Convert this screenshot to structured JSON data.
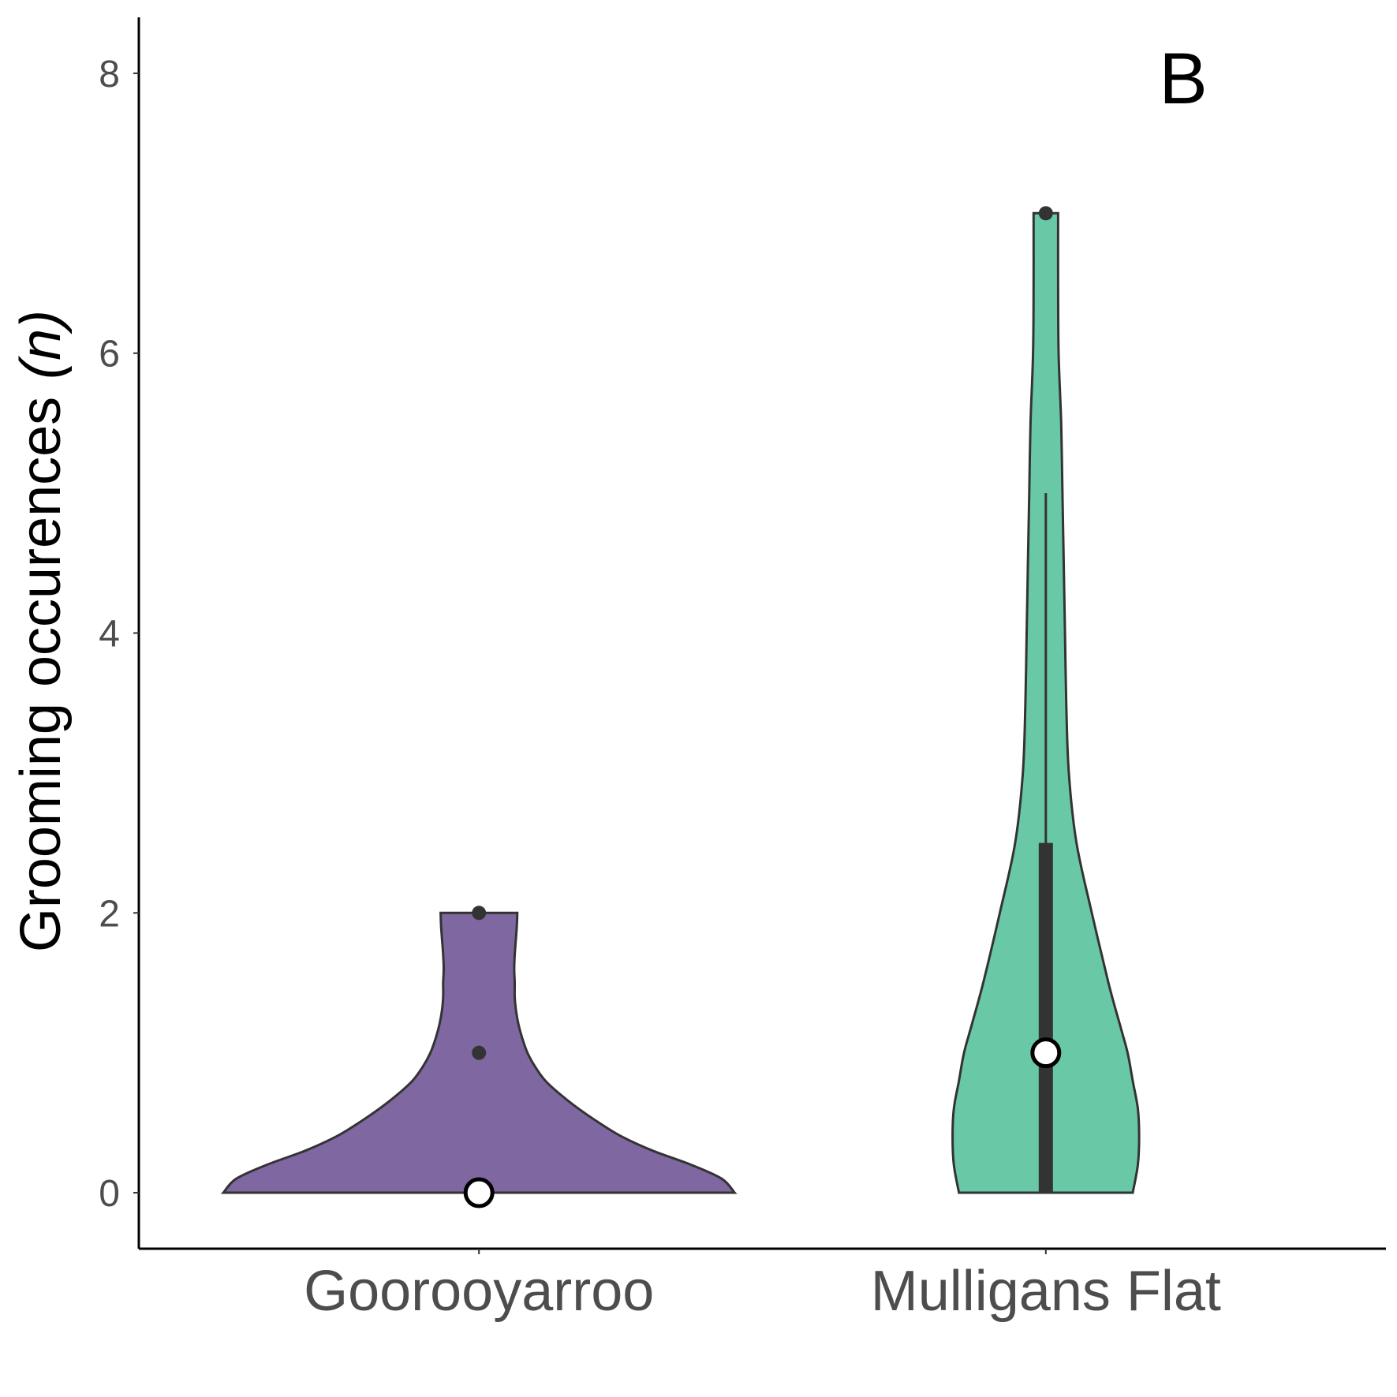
{
  "chart_data": {
    "type": "violin",
    "panel_label": "B",
    "ylabel": "Grooming occurences",
    "ylabel_italic_part": "(n)",
    "ylim": [
      -0.4,
      8.4
    ],
    "yticks": [
      "0",
      "2",
      "4",
      "6",
      "8"
    ],
    "ytick_values": [
      0,
      2,
      4,
      6,
      8
    ],
    "categories": [
      "Goorooyarroo",
      "Mulligans Flat"
    ],
    "groups": [
      {
        "category": "Goorooyarroo",
        "color": "#7f67a1",
        "min": 0,
        "max": 2,
        "median": 0,
        "q1": 0,
        "q3": 0,
        "whisker_low": 0,
        "whisker_high": 0,
        "outliers": [
          1,
          2
        ],
        "density": [
          [
            0.0,
            1.0
          ],
          [
            0.1,
            0.95
          ],
          [
            0.2,
            0.83
          ],
          [
            0.3,
            0.68
          ],
          [
            0.4,
            0.56
          ],
          [
            0.5,
            0.47
          ],
          [
            0.6,
            0.39
          ],
          [
            0.7,
            0.32
          ],
          [
            0.8,
            0.26
          ],
          [
            0.9,
            0.22
          ],
          [
            1.0,
            0.19
          ],
          [
            1.1,
            0.17
          ],
          [
            1.2,
            0.155
          ],
          [
            1.3,
            0.145
          ],
          [
            1.4,
            0.14
          ],
          [
            1.5,
            0.14
          ],
          [
            1.6,
            0.138
          ],
          [
            1.7,
            0.14
          ],
          [
            1.8,
            0.144
          ],
          [
            1.9,
            0.148
          ],
          [
            2.0,
            0.15
          ]
        ]
      },
      {
        "category": "Mulligans Flat",
        "color": "#69c8a6",
        "min": 0,
        "max": 7,
        "median": 1,
        "q1": 0,
        "q3": 2.5,
        "whisker_low": 0,
        "whisker_high": 5,
        "outliers": [
          7
        ],
        "density": [
          [
            0.0,
            0.34
          ],
          [
            0.2,
            0.36
          ],
          [
            0.4,
            0.365
          ],
          [
            0.6,
            0.36
          ],
          [
            0.8,
            0.34
          ],
          [
            1.0,
            0.32
          ],
          [
            1.2,
            0.29
          ],
          [
            1.5,
            0.245
          ],
          [
            2.0,
            0.18
          ],
          [
            2.5,
            0.12
          ],
          [
            3.0,
            0.09
          ],
          [
            3.5,
            0.08
          ],
          [
            4.0,
            0.075
          ],
          [
            4.5,
            0.07
          ],
          [
            5.0,
            0.065
          ],
          [
            5.5,
            0.06
          ],
          [
            6.0,
            0.05
          ],
          [
            6.5,
            0.048
          ],
          [
            7.0,
            0.048
          ]
        ]
      }
    ],
    "grid": false,
    "legend": "none"
  }
}
